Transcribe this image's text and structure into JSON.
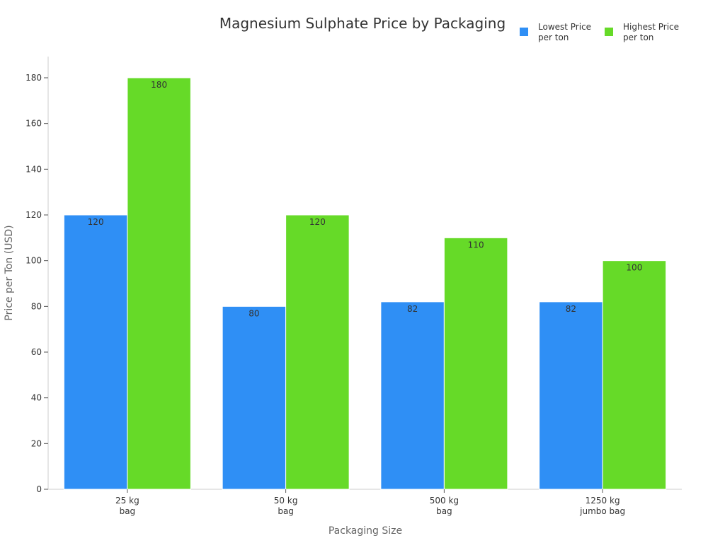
{
  "chart_data": {
    "type": "bar",
    "title": "Magnesium Sulphate Price by Packaging",
    "xlabel": "Packaging Size",
    "ylabel": "Price per Ton (USD)",
    "categories": [
      [
        "25 kg",
        "bag"
      ],
      [
        "50 kg",
        "bag"
      ],
      [
        "500 kg",
        "bag"
      ],
      [
        "1250 kg",
        "jumbo bag"
      ]
    ],
    "series": [
      {
        "name": [
          "Lowest Price",
          "per ton"
        ],
        "color": "#2f8ff5",
        "values": [
          120,
          80,
          82,
          82
        ]
      },
      {
        "name": [
          "Highest Price",
          "per ton"
        ],
        "color": "#66da28",
        "values": [
          180,
          120,
          110,
          100
        ]
      }
    ],
    "ylim": [
      0,
      190
    ],
    "yticks": [
      0,
      20,
      40,
      60,
      80,
      100,
      120,
      140,
      160,
      180
    ],
    "grid": false,
    "legend_position": "top-right"
  }
}
